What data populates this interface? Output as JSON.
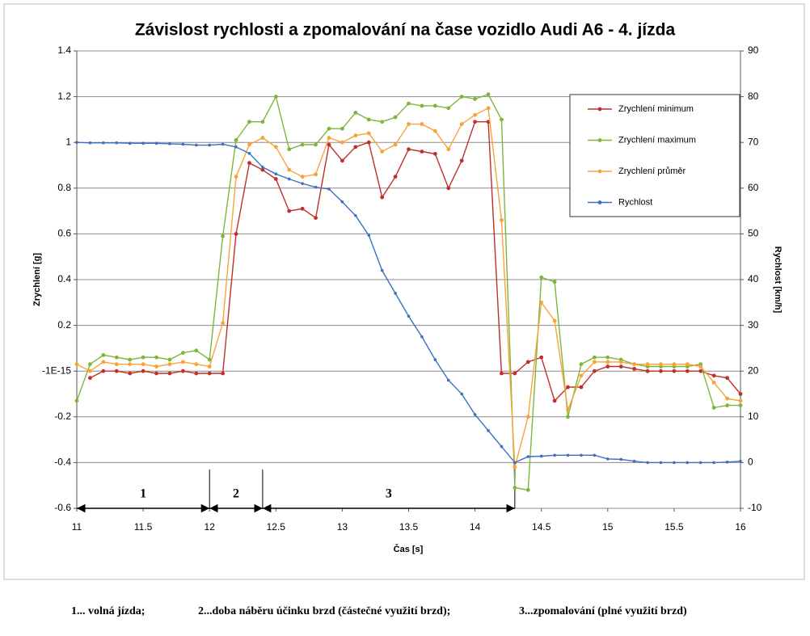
{
  "chart_data": {
    "type": "line",
    "title": "Závislost rychlosti a zpomalování na čase vozidlo Audi A6 - 4. jízda",
    "x_label": "Čas [s]",
    "y_label": "Zrychlení [g]",
    "y2_label": "Rychlost [km/h]",
    "x": [
      11,
      11.1,
      11.2,
      11.3,
      11.4,
      11.5,
      11.6,
      11.7,
      11.8,
      11.9,
      12,
      12.1,
      12.2,
      12.3,
      12.4,
      12.5,
      12.6,
      12.7,
      12.8,
      12.9,
      13,
      13.1,
      13.2,
      13.3,
      13.4,
      13.5,
      13.6,
      13.7,
      13.8,
      13.9,
      14,
      14.1,
      14.2,
      14.3,
      14.4,
      14.5,
      14.6,
      14.7,
      14.8,
      14.9,
      15,
      15.1,
      15.2,
      15.3,
      15.4,
      15.5,
      15.6,
      15.7,
      15.8,
      15.9,
      16
    ],
    "series": [
      {
        "name": "Zrychlení minimum",
        "color": "#c0302b",
        "values": [
          null,
          -0.03,
          0,
          0,
          -0.01,
          0,
          -0.01,
          -0.01,
          0,
          -0.01,
          -0.01,
          -0.01,
          0.6,
          0.91,
          0.88,
          0.84,
          0.7,
          0.71,
          0.67,
          0.99,
          0.92,
          0.98,
          1,
          0.76,
          0.85,
          0.97,
          0.96,
          0.95,
          0.8,
          0.92,
          1.09,
          1.09,
          -0.01,
          -0.01,
          0.04,
          0.06,
          -0.13,
          -0.07,
          -0.07,
          0,
          0.02,
          0.02,
          0.01,
          0,
          0,
          0,
          0,
          0,
          -0.02,
          -0.03,
          -0.1
        ]
      },
      {
        "name": "Zrychlení maximum",
        "color": "#7fb53c",
        "values": [
          -0.13,
          0.03,
          0.07,
          0.06,
          0.05,
          0.06,
          0.06,
          0.05,
          0.08,
          0.09,
          0.05,
          0.59,
          1.01,
          1.09,
          1.09,
          1.2,
          0.97,
          0.99,
          0.99,
          1.06,
          1.06,
          1.13,
          1.1,
          1.09,
          1.11,
          1.17,
          1.16,
          1.16,
          1.15,
          1.2,
          1.19,
          1.21,
          1.1,
          -0.51,
          -0.52,
          0.41,
          0.39,
          -0.2,
          0.03,
          0.06,
          0.06,
          0.05,
          0.03,
          0.02,
          0.02,
          0.02,
          0.02,
          0.03,
          -0.16,
          -0.15,
          -0.15
        ]
      },
      {
        "name": "Zrychlení průměr",
        "color": "#f7a33a",
        "values": [
          0.03,
          0,
          0.04,
          0.03,
          0.03,
          0.03,
          0.02,
          0.03,
          0.04,
          0.03,
          0.02,
          0.21,
          0.85,
          0.99,
          1.02,
          0.98,
          0.88,
          0.85,
          0.86,
          1.02,
          1,
          1.03,
          1.04,
          0.96,
          0.99,
          1.08,
          1.08,
          1.05,
          0.97,
          1.08,
          1.12,
          1.15,
          0.66,
          -0.42,
          -0.2,
          0.3,
          0.22,
          -0.17,
          -0.02,
          0.04,
          0.04,
          0.04,
          0.03,
          0.03,
          0.03,
          0.03,
          0.03,
          0.02,
          -0.05,
          -0.12,
          -0.13
        ]
      },
      {
        "name": "Rychlost",
        "color": "#3a6fc4",
        "axis": "y2",
        "values": [
          70,
          69.9,
          69.9,
          69.9,
          69.8,
          69.8,
          69.8,
          69.7,
          69.6,
          69.4,
          69.4,
          69.6,
          69,
          67.6,
          64.6,
          63.1,
          62,
          61,
          60.2,
          59.8,
          57,
          54,
          49.7,
          42,
          37,
          32,
          27.5,
          22.5,
          18,
          15,
          10.5,
          7,
          3.5,
          0,
          1.3,
          1.4,
          1.6,
          1.6,
          1.6,
          1.6,
          0.8,
          0.7,
          0.3,
          0,
          0,
          0,
          0,
          0,
          0,
          0.1,
          0.3
        ]
      }
    ],
    "xlim": [
      11,
      16
    ],
    "xticks": [
      11,
      11.5,
      12,
      12.5,
      13,
      13.5,
      14,
      14.5,
      15,
      15.5,
      16
    ],
    "ylim": [
      -0.6,
      1.4
    ],
    "yticks": [
      1.4,
      1.2,
      1,
      0.8,
      0.6,
      0.4,
      0.2,
      {
        "value": -1e-15,
        "label": "-1E-15"
      },
      -0.2,
      -0.4,
      -0.6
    ],
    "y2lim": [
      -10,
      90
    ],
    "y2ticks": [
      90,
      80,
      70,
      60,
      50,
      40,
      30,
      20,
      10,
      0,
      -10
    ],
    "grid": true,
    "legend": "upper-right",
    "phases": [
      {
        "label": "1",
        "start": 11,
        "end": 12
      },
      {
        "label": "2",
        "start": 12,
        "end": 12.4
      },
      {
        "label": "3",
        "start": 12.4,
        "end": 14.3
      }
    ]
  },
  "footnotes": [
    "1... volná jízda;",
    "2...doba náběru účinku brzd (částečné využití brzd);",
    "3...zpomalování (plné využití brzd)"
  ]
}
